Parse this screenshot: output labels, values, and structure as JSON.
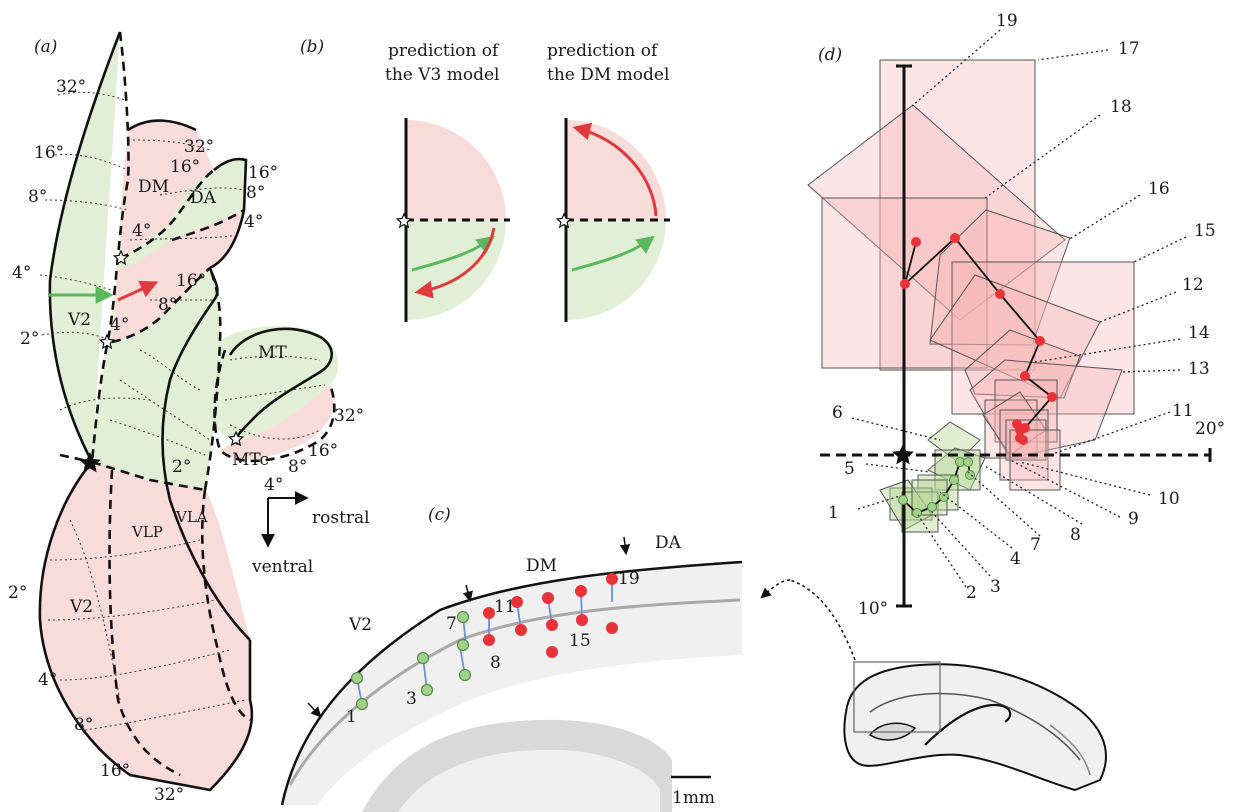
{
  "panels": {
    "a": "(a)",
    "b": "(b)",
    "c": "(c)",
    "d": "(d)"
  },
  "panel_a": {
    "areas": [
      "DM",
      "DA",
      "V2",
      "MT",
      "MTc",
      "VLP",
      "VLA",
      "V2"
    ],
    "eccentricities_left": [
      "32°",
      "16°",
      "8°",
      "4°",
      "2°"
    ],
    "eccentricities_dm": [
      "32°",
      "16°",
      "16°",
      "8°",
      "4°",
      "4°",
      "16°",
      "8°",
      "4°"
    ],
    "eccentricities_mt": [
      "32°",
      "16°",
      "8°",
      "4°",
      "2°"
    ],
    "eccentricities_lower": [
      "2°",
      "4°",
      "8°",
      "16°",
      "32°"
    ],
    "directions": {
      "rostral": "rostral",
      "ventral": "ventral"
    }
  },
  "panel_b": {
    "v3_title_line1": "prediction of",
    "v3_title_line2": "the V3 model",
    "dm_title_line1": "prediction of",
    "dm_title_line2": "the DM model"
  },
  "panel_c": {
    "areas": [
      "V2",
      "DM",
      "DA"
    ],
    "site_labels": [
      "1",
      "3",
      "7",
      "8",
      "11",
      "15",
      "19"
    ],
    "scale": "1mm"
  },
  "panel_d": {
    "site_numbers": [
      "19",
      "17",
      "18",
      "16",
      "15",
      "12",
      "14",
      "13",
      "11",
      "10",
      "9",
      "8",
      "7",
      "4",
      "3",
      "2",
      "1",
      "5",
      "6"
    ],
    "axis_labels": {
      "horizontal": "20°",
      "vertical": "10°"
    }
  },
  "colors": {
    "lower_field_green": "#e1efd6",
    "upper_field_pink": "#f8dcda",
    "green_arrow": "#5cb85c",
    "red_arrow": "#e0393e",
    "red_dot": "#e8333a",
    "green_dot": "#9fd28a",
    "connector_blue": "#6a8fd8"
  }
}
